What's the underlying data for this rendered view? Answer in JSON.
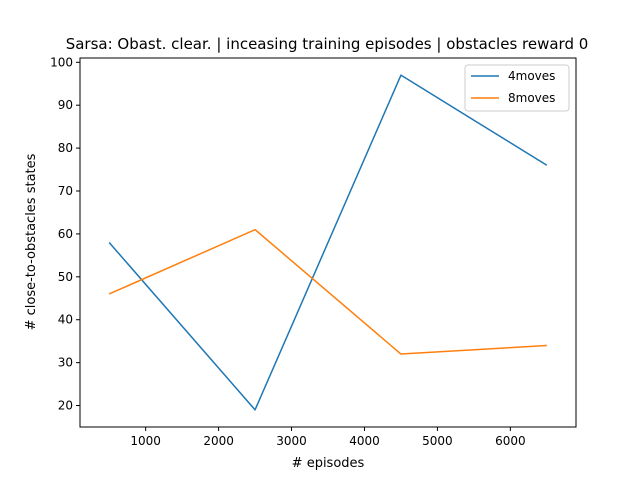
{
  "chart_data": {
    "type": "line",
    "title": "Sarsa: Obast. clear. | inceasing training episodes | obstacles reward 0",
    "xlabel": "# episodes",
    "ylabel": "# close-to-obstacles states",
    "x": [
      500,
      2500,
      4500,
      6500
    ],
    "xlim": [
      100,
      6900
    ],
    "ylim": [
      15,
      101
    ],
    "xticks": [
      1000,
      2000,
      3000,
      4000,
      5000,
      6000
    ],
    "yticks": [
      20,
      30,
      40,
      50,
      60,
      70,
      80,
      90,
      100
    ],
    "grid": false,
    "legend_position": "top-right",
    "series": [
      {
        "name": "4moves",
        "color": "#1f77b4",
        "values": [
          58,
          19,
          97,
          76
        ]
      },
      {
        "name": "8moves",
        "color": "#ff7f0e",
        "values": [
          46,
          61,
          32,
          34
        ]
      }
    ]
  }
}
